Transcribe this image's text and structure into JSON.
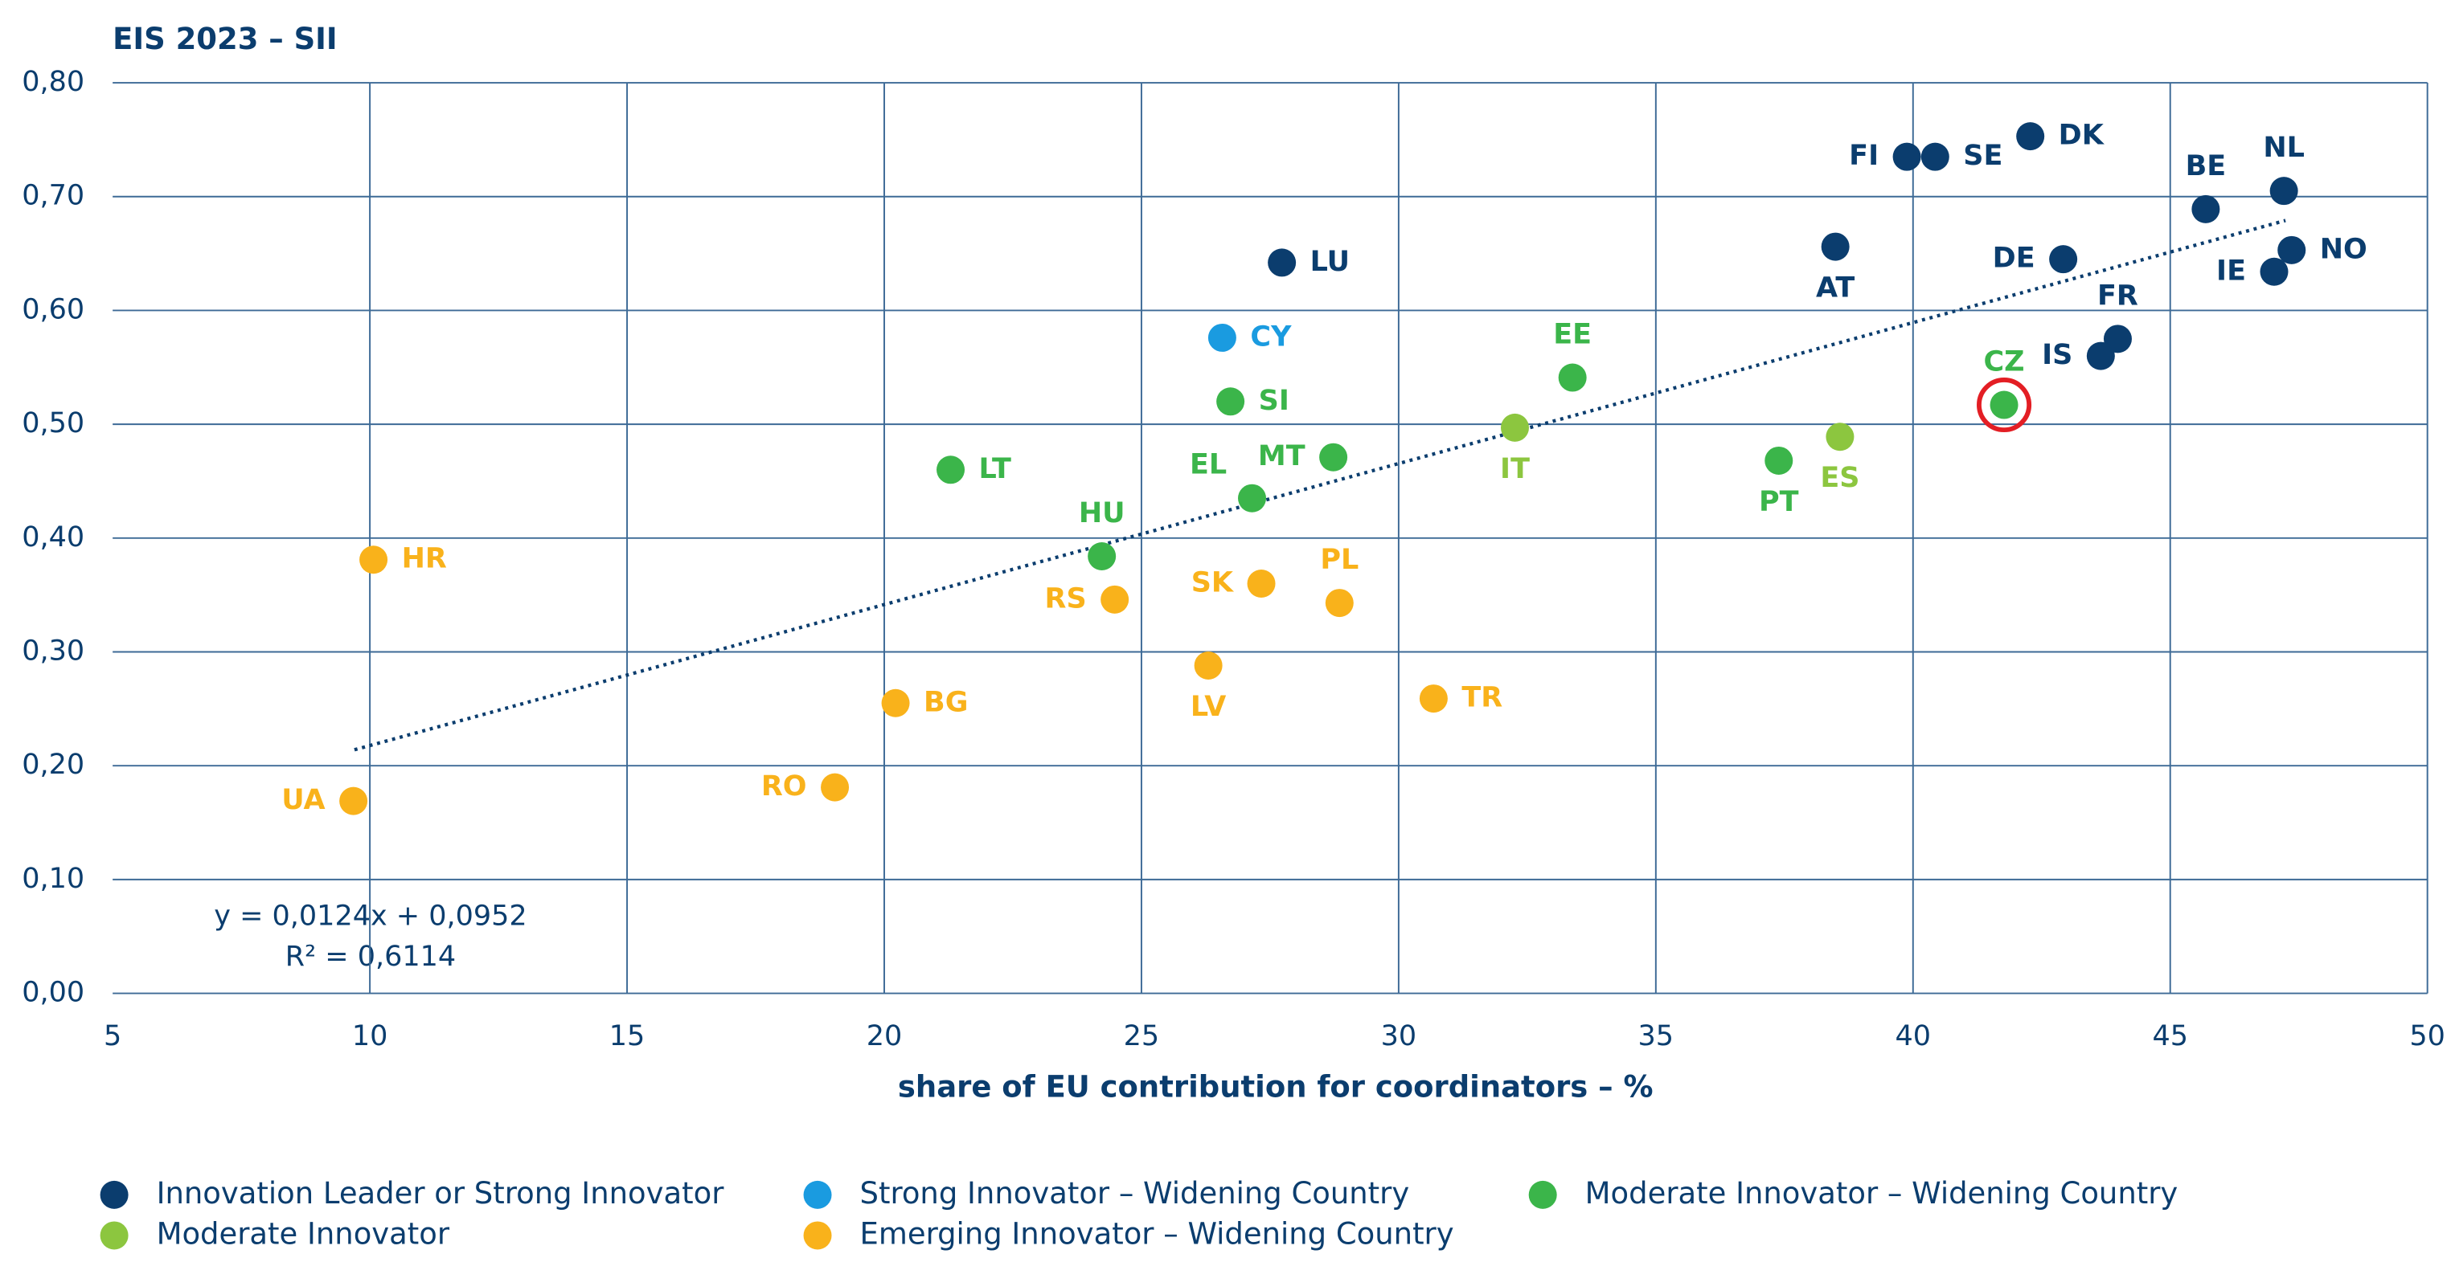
{
  "chart_data": {
    "type": "scatter",
    "title": "EIS 2023 – SII",
    "x_label": "share of EU contribution for coordinators – %",
    "xlim": [
      5,
      50
    ],
    "xticks": [
      5,
      10,
      15,
      20,
      25,
      30,
      35,
      40,
      45,
      50
    ],
    "ylim": [
      0,
      0.8
    ],
    "yticks": [
      {
        "value": 0,
        "label": "0,00"
      },
      {
        "value": 0.1,
        "label": "0,10"
      },
      {
        "value": 0.2,
        "label": "0,20"
      },
      {
        "value": 0.3,
        "label": "0,30"
      },
      {
        "value": 0.4,
        "label": "0,40"
      },
      {
        "value": 0.5,
        "label": "0,50"
      },
      {
        "value": 0.6,
        "label": "0,60"
      },
      {
        "value": 0.7,
        "label": "0,70"
      },
      {
        "value": 0.8,
        "label": "0,80"
      }
    ],
    "grid": true,
    "legend": "bottom",
    "series": [
      {
        "name": "Innovation Leader or Strong Innovator",
        "color": "#0b3d6e",
        "labels": [
          "FI",
          "SE",
          "DK",
          "BE",
          "NL",
          "NO",
          "IE",
          "DE",
          "AT",
          "FR",
          "IS",
          "LU"
        ],
        "x": [
          39.88,
          40.43,
          42.28,
          45.69,
          47.21,
          47.36,
          47.02,
          42.92,
          38.49,
          43.98,
          43.65,
          27.73
        ],
        "values": [
          0.735,
          0.735,
          0.753,
          0.689,
          0.705,
          0.653,
          0.634,
          0.645,
          0.656,
          0.575,
          0.56,
          0.642
        ]
      },
      {
        "name": "Strong Innovator – Widening Country",
        "color": "#1a9be0",
        "labels": [
          "CY"
        ],
        "x": [
          26.57
        ],
        "values": [
          0.576
        ]
      },
      {
        "name": "Moderate Innovator – Widening Country",
        "color": "#3bb54a",
        "labels": [
          "SI",
          "EE",
          "CZ",
          "PT",
          "MT",
          "EL",
          "LT",
          "HU"
        ],
        "x": [
          26.73,
          33.38,
          41.77,
          37.39,
          28.73,
          27.15,
          21.29,
          24.23
        ],
        "values": [
          0.52,
          0.541,
          0.517,
          0.468,
          0.471,
          0.435,
          0.46,
          0.384
        ]
      },
      {
        "name": "Moderate Innovator",
        "color": "#8cc63f",
        "labels": [
          "IT",
          "ES"
        ],
        "x": [
          32.26,
          38.58
        ],
        "values": [
          0.497,
          0.489
        ]
      },
      {
        "name": "Emerging Innovator – Widening Country",
        "color": "#f9b21b",
        "labels": [
          "HR",
          "RS",
          "SK",
          "PL",
          "LV",
          "TR",
          "BG",
          "RO",
          "UA"
        ],
        "x": [
          10.07,
          24.48,
          27.33,
          28.85,
          26.3,
          30.68,
          20.22,
          19.04,
          9.68
        ],
        "values": [
          0.381,
          0.346,
          0.36,
          0.343,
          0.288,
          0.259,
          0.255,
          0.181,
          0.169
        ]
      }
    ],
    "trendline": {
      "x": [
        9.7,
        47.24
      ],
      "values": [
        0.214,
        0.679
      ],
      "color": "#0b3d6e",
      "equation": "y = 0,0124x + 0,0952",
      "r_squared": "R² = 0,6114"
    }
  }
}
